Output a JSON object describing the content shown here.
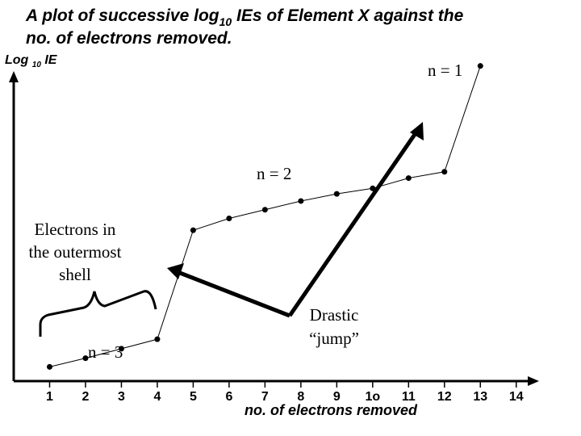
{
  "chart_data": {
    "type": "line",
    "title": "A plot of successive log10 IEs of Element X against the no. of electrons removed.",
    "title_line1_a": "A plot of successive log",
    "title_line1_sub": "10",
    "title_line1_b": " IEs of Element X against the",
    "title_line2": "no. of electrons removed.",
    "ylabel_a": "Log ",
    "ylabel_sub": "10",
    "ylabel_b": " IE",
    "xlabel": "no. of electrons removed",
    "x_tick_labels": [
      "1",
      "2",
      "3",
      "4",
      "5",
      "6",
      "7",
      "8",
      "9",
      "1o",
      "11",
      "12",
      "13",
      "14"
    ],
    "x": [
      1,
      2,
      3,
      4,
      5,
      6,
      7,
      8,
      9,
      10,
      11,
      12,
      13
    ],
    "y_label_hidden": true,
    "series": [
      {
        "values": [
          0.9,
          1.45,
          2.05,
          2.65,
          9.55,
          10.3,
          10.85,
          11.4,
          11.85,
          12.2,
          12.85,
          13.25,
          19.95
        ]
      }
    ],
    "xlim": [
      0,
      14.5
    ],
    "ylim": [
      0,
      23
    ],
    "grid": false,
    "annotations": {
      "n3": "n = 3",
      "n2": "n = 2",
      "n1": "n = 1",
      "outer_shell_line1": "Electrons in",
      "outer_shell_line2": "the outermost",
      "outer_shell_line3": "shell",
      "jump_line1": "Drastic",
      "jump_line2": "“jump”"
    },
    "colors": {
      "line": "#000000",
      "points": "#000000",
      "background": "#ffffff"
    }
  }
}
